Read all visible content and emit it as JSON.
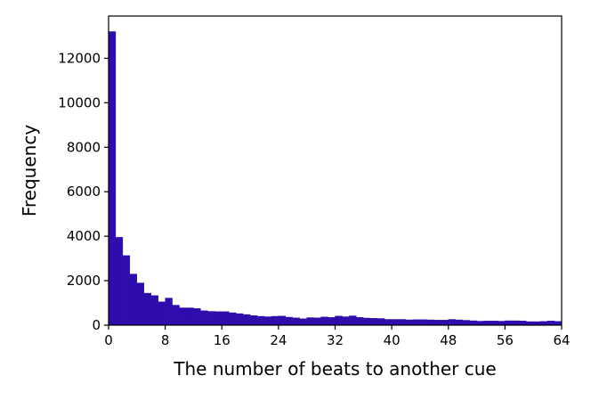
{
  "chart_data": {
    "type": "bar",
    "title": "",
    "xlabel": "The number of beats to another cue",
    "ylabel": "Frequency",
    "xlim": [
      0,
      64
    ],
    "ylim": [
      0,
      13900
    ],
    "bin_width": 1,
    "x_ticks": [
      0,
      8,
      16,
      24,
      32,
      40,
      48,
      56,
      64
    ],
    "y_ticks": [
      0,
      2000,
      4000,
      6000,
      8000,
      10000,
      12000
    ],
    "grid": false,
    "legend": "none",
    "bar_color": "#2f0cac",
    "bins": [
      0,
      1,
      2,
      3,
      4,
      5,
      6,
      7,
      8,
      9,
      10,
      11,
      12,
      13,
      14,
      15,
      16,
      17,
      18,
      19,
      20,
      21,
      22,
      23,
      24,
      25,
      26,
      27,
      28,
      29,
      30,
      31,
      32,
      33,
      34,
      35,
      36,
      37,
      38,
      39,
      40,
      41,
      42,
      43,
      44,
      45,
      46,
      47,
      48,
      49,
      50,
      51,
      52,
      53,
      54,
      55,
      56,
      57,
      58,
      59,
      60,
      61,
      62,
      63
    ],
    "values": [
      13200,
      3950,
      3130,
      2300,
      1900,
      1440,
      1330,
      1050,
      1220,
      900,
      780,
      780,
      750,
      650,
      620,
      610,
      610,
      560,
      520,
      480,
      430,
      400,
      380,
      400,
      410,
      360,
      330,
      290,
      340,
      330,
      370,
      350,
      410,
      380,
      420,
      350,
      320,
      310,
      300,
      260,
      260,
      260,
      240,
      250,
      250,
      240,
      230,
      230,
      260,
      240,
      220,
      200,
      180,
      190,
      190,
      180,
      200,
      200,
      190,
      160,
      160,
      170,
      190,
      170
    ]
  }
}
